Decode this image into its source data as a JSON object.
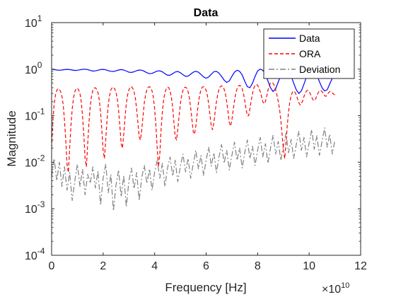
{
  "chart_data": {
    "type": "line",
    "title": "Data",
    "xlabel": "Frequency [Hz]",
    "ylabel": "Magnitude",
    "x_exponent_label": "×10",
    "x_exponent_power": "10",
    "x_scale_factor": 10000000000,
    "xlim": [
      0,
      12
    ],
    "ylim": [
      0.0001,
      10
    ],
    "yscale": "log",
    "grid": false,
    "legend_position": "top-right",
    "x_ticks": [
      0,
      2,
      4,
      6,
      8,
      10,
      12
    ],
    "x_tick_labels": [
      "0",
      "2",
      "4",
      "6",
      "8",
      "10",
      "12"
    ],
    "y_ticks": [
      0.0001,
      0.001,
      0.01,
      0.1,
      1,
      10
    ],
    "y_tick_bases": [
      "10",
      "10",
      "10",
      "10",
      "10",
      "10"
    ],
    "y_tick_powers": [
      "-4",
      "-3",
      "-2",
      "-1",
      "0",
      "1"
    ],
    "series": [
      {
        "name": "Data",
        "color": "#0000ff",
        "style": "solid",
        "x": [
          0,
          0.1,
          0.2,
          0.3,
          0.4,
          0.5,
          0.6,
          0.7,
          0.8,
          0.9,
          1.0,
          1.1,
          1.2,
          1.3,
          1.4,
          1.5,
          1.6,
          1.7,
          1.8,
          1.9,
          2.0,
          2.1,
          2.2,
          2.3,
          2.4,
          2.5,
          2.6,
          2.7,
          2.8,
          2.9,
          3.0,
          3.1,
          3.2,
          3.3,
          3.4,
          3.5,
          3.6,
          3.7,
          3.8,
          3.9,
          4.0,
          4.1,
          4.2,
          4.3,
          4.4,
          4.5,
          4.6,
          4.7,
          4.8,
          4.9,
          5.0,
          5.1,
          5.2,
          5.3,
          5.4,
          5.5,
          5.6,
          5.7,
          5.8,
          5.9,
          6.0,
          6.1,
          6.2,
          6.3,
          6.4,
          6.5,
          6.6,
          6.7,
          6.8,
          6.9,
          7.0,
          7.1,
          7.2,
          7.3,
          7.4,
          7.5,
          7.6,
          7.7,
          7.8,
          7.9,
          8.0,
          8.1,
          8.2,
          8.3,
          8.4,
          8.5,
          8.6,
          8.7,
          8.8,
          8.9,
          9.0,
          9.1,
          9.2,
          9.3,
          9.4,
          9.5,
          9.6,
          9.7,
          9.8,
          9.9,
          10.0,
          10.1,
          10.2,
          10.3,
          10.4,
          10.5,
          10.6,
          10.7,
          10.8,
          10.9,
          11.0
        ],
        "y": [
          1.0,
          0.98,
          0.96,
          0.95,
          0.96,
          0.98,
          0.99,
          0.98,
          0.96,
          0.94,
          0.95,
          0.97,
          0.99,
          1.0,
          0.98,
          0.94,
          0.91,
          0.92,
          0.95,
          0.98,
          0.99,
          0.97,
          0.93,
          0.9,
          0.89,
          0.92,
          0.96,
          0.98,
          0.96,
          0.91,
          0.86,
          0.85,
          0.88,
          0.93,
          0.96,
          0.95,
          0.9,
          0.84,
          0.8,
          0.81,
          0.86,
          0.91,
          0.92,
          0.88,
          0.8,
          0.74,
          0.74,
          0.8,
          0.87,
          0.89,
          0.84,
          0.76,
          0.7,
          0.71,
          0.78,
          0.86,
          0.9,
          0.86,
          0.77,
          0.68,
          0.64,
          0.68,
          0.78,
          0.88,
          0.9,
          0.82,
          0.7,
          0.58,
          0.52,
          0.56,
          0.7,
          0.86,
          0.95,
          0.9,
          0.75,
          0.55,
          0.42,
          0.4,
          0.5,
          0.7,
          0.92,
          1.0,
          0.95,
          0.78,
          0.56,
          0.4,
          0.33,
          0.38,
          0.53,
          0.75,
          0.97,
          1.0,
          0.92,
          0.72,
          0.5,
          0.36,
          0.3,
          0.34,
          0.48,
          0.68,
          0.9,
          0.99,
          0.92,
          0.75,
          0.54,
          0.4,
          0.34,
          0.36,
          0.48,
          0.64,
          0.76
        ]
      },
      {
        "name": "ORA",
        "color": "#ff0000",
        "style": "dashed",
        "x": [
          0,
          0.05,
          0.1,
          0.15,
          0.2,
          0.25,
          0.3,
          0.35,
          0.4,
          0.45,
          0.5,
          0.55,
          0.6,
          0.65,
          0.7,
          0.75,
          0.8,
          0.85,
          0.9,
          0.95,
          1.0,
          1.05,
          1.1,
          1.15,
          1.2,
          1.25,
          1.3,
          1.35,
          1.4,
          1.45,
          1.5,
          1.55,
          1.6,
          1.65,
          1.7,
          1.75,
          1.8,
          1.85,
          1.9,
          1.95,
          2.0,
          2.05,
          2.1,
          2.15,
          2.2,
          2.25,
          2.3,
          2.35,
          2.4,
          2.45,
          2.5,
          2.55,
          2.6,
          2.65,
          2.7,
          2.75,
          2.8,
          2.85,
          2.9,
          2.95,
          3.0,
          3.05,
          3.1,
          3.15,
          3.2,
          3.25,
          3.3,
          3.35,
          3.4,
          3.45,
          3.5,
          3.55,
          3.6,
          3.65,
          3.7,
          3.75,
          3.8,
          3.85,
          3.9,
          3.95,
          4.0,
          4.05,
          4.1,
          4.15,
          4.2,
          4.25,
          4.3,
          4.35,
          4.4,
          4.45,
          4.5,
          4.55,
          4.6,
          4.65,
          4.7,
          4.75,
          4.8,
          4.85,
          4.9,
          4.95,
          5.0,
          5.05,
          5.1,
          5.15,
          5.2,
          5.25,
          5.3,
          5.35,
          5.4,
          5.45,
          5.5,
          5.55,
          5.6,
          5.65,
          5.7,
          5.75,
          5.8,
          5.85,
          5.9,
          5.95,
          6.0,
          6.05,
          6.1,
          6.15,
          6.2,
          6.25,
          6.3,
          6.35,
          6.4,
          6.45,
          6.5,
          6.55,
          6.6,
          6.65,
          6.7,
          6.75,
          6.8,
          6.85,
          6.9,
          6.95,
          7.0,
          7.05,
          7.1,
          7.15,
          7.2,
          7.25,
          7.3,
          7.35,
          7.4,
          7.45,
          7.5,
          7.55,
          7.6,
          7.65,
          7.7,
          7.75,
          7.8,
          7.85,
          7.9,
          7.95,
          8.0,
          8.05,
          8.1,
          8.15,
          8.2,
          8.25,
          8.3,
          8.35,
          8.4,
          8.45,
          8.5,
          8.55,
          8.6,
          8.65,
          8.7,
          8.75,
          8.8,
          8.85,
          8.9,
          8.95,
          9.0,
          9.05,
          9.1,
          9.15,
          9.2,
          9.25,
          9.3,
          9.35,
          9.4,
          9.45,
          9.5,
          9.55,
          9.6,
          9.65,
          9.7,
          9.75,
          9.8,
          9.85,
          9.9,
          9.95,
          10.0,
          10.05,
          10.1,
          10.15,
          10.2,
          10.25,
          10.3,
          10.35,
          10.4,
          10.45,
          10.5,
          10.55,
          10.6,
          10.65,
          10.7,
          10.75,
          10.8,
          10.85,
          10.9,
          10.95,
          11.0
        ],
        "y": [
          0.02,
          0.08,
          0.18,
          0.28,
          0.35,
          0.38,
          0.37,
          0.33,
          0.26,
          0.17,
          0.08,
          0.03,
          0.009,
          0.006,
          0.02,
          0.06,
          0.14,
          0.24,
          0.33,
          0.38,
          0.39,
          0.36,
          0.3,
          0.2,
          0.1,
          0.04,
          0.012,
          0.008,
          0.025,
          0.07,
          0.16,
          0.26,
          0.35,
          0.39,
          0.4,
          0.37,
          0.31,
          0.22,
          0.12,
          0.05,
          0.018,
          0.012,
          0.03,
          0.08,
          0.17,
          0.27,
          0.36,
          0.4,
          0.41,
          0.38,
          0.32,
          0.23,
          0.13,
          0.06,
          0.025,
          0.02,
          0.04,
          0.09,
          0.18,
          0.28,
          0.36,
          0.41,
          0.42,
          0.39,
          0.33,
          0.24,
          0.14,
          0.07,
          0.035,
          0.03,
          0.05,
          0.1,
          0.19,
          0.28,
          0.36,
          0.41,
          0.42,
          0.4,
          0.34,
          0.25,
          0.14,
          0.06,
          0.02,
          0.008,
          0.015,
          0.05,
          0.12,
          0.22,
          0.31,
          0.38,
          0.41,
          0.4,
          0.34,
          0.25,
          0.15,
          0.07,
          0.035,
          0.03,
          0.05,
          0.1,
          0.18,
          0.27,
          0.35,
          0.4,
          0.41,
          0.39,
          0.33,
          0.24,
          0.15,
          0.08,
          0.045,
          0.04,
          0.06,
          0.11,
          0.19,
          0.28,
          0.36,
          0.41,
          0.42,
          0.4,
          0.35,
          0.27,
          0.18,
          0.1,
          0.06,
          0.05,
          0.07,
          0.12,
          0.2,
          0.29,
          0.37,
          0.42,
          0.44,
          0.42,
          0.37,
          0.29,
          0.2,
          0.12,
          0.07,
          0.06,
          0.08,
          0.13,
          0.21,
          0.3,
          0.38,
          0.43,
          0.45,
          0.43,
          0.38,
          0.3,
          0.21,
          0.14,
          0.1,
          0.1,
          0.14,
          0.21,
          0.3,
          0.39,
          0.45,
          0.47,
          0.45,
          0.4,
          0.33,
          0.26,
          0.2,
          0.18,
          0.2,
          0.26,
          0.35,
          0.44,
          0.5,
          0.52,
          0.5,
          0.44,
          0.36,
          0.28,
          0.2,
          0.14,
          0.08,
          0.04,
          0.018,
          0.012,
          0.025,
          0.06,
          0.12,
          0.2,
          0.27,
          0.32,
          0.34,
          0.32,
          0.28,
          0.23,
          0.19,
          0.17,
          0.18,
          0.21,
          0.26,
          0.31,
          0.34,
          0.35,
          0.33,
          0.29,
          0.25,
          0.22,
          0.21,
          0.23,
          0.27,
          0.31,
          0.34,
          0.35,
          0.33,
          0.3,
          0.27,
          0.26,
          0.28,
          0.31,
          0.33,
          0.33,
          0.31,
          0.29,
          0.28
        ]
      },
      {
        "name": "Deviation",
        "color": "#808080",
        "style": "dashdot",
        "x": [
          0,
          0.1,
          0.2,
          0.3,
          0.4,
          0.5,
          0.6,
          0.7,
          0.8,
          0.9,
          1.0,
          1.1,
          1.2,
          1.3,
          1.4,
          1.5,
          1.6,
          1.7,
          1.8,
          1.9,
          2.0,
          2.1,
          2.2,
          2.3,
          2.4,
          2.5,
          2.6,
          2.7,
          2.8,
          2.9,
          3.0,
          3.1,
          3.2,
          3.3,
          3.4,
          3.5,
          3.6,
          3.7,
          3.8,
          3.9,
          4.0,
          4.1,
          4.2,
          4.3,
          4.4,
          4.5,
          4.6,
          4.7,
          4.8,
          4.9,
          5.0,
          5.1,
          5.2,
          5.3,
          5.4,
          5.5,
          5.6,
          5.7,
          5.8,
          5.9,
          6.0,
          6.1,
          6.2,
          6.3,
          6.4,
          6.5,
          6.6,
          6.7,
          6.8,
          6.9,
          7.0,
          7.1,
          7.2,
          7.3,
          7.4,
          7.5,
          7.6,
          7.7,
          7.8,
          7.9,
          8.0,
          8.1,
          8.2,
          8.3,
          8.4,
          8.5,
          8.6,
          8.7,
          8.8,
          8.9,
          9.0,
          9.1,
          9.2,
          9.3,
          9.4,
          9.5,
          9.6,
          9.7,
          9.8,
          9.9,
          10.0,
          10.1,
          10.2,
          10.3,
          10.4,
          10.5,
          10.6,
          10.7,
          10.8,
          10.9,
          11.0
        ],
        "y": [
          0.005,
          0.012,
          0.004,
          0.01,
          0.003,
          0.008,
          0.0025,
          0.006,
          0.0015,
          0.004,
          0.009,
          0.003,
          0.007,
          0.002,
          0.0055,
          0.0035,
          0.008,
          0.0028,
          0.0065,
          0.0012,
          0.0045,
          0.009,
          0.0022,
          0.0055,
          0.0009,
          0.0032,
          0.0068,
          0.0018,
          0.0052,
          0.0011,
          0.004,
          0.0075,
          0.0027,
          0.006,
          0.0015,
          0.0048,
          0.0085,
          0.0035,
          0.0072,
          0.0025,
          0.0062,
          0.011,
          0.0045,
          0.0095,
          0.003,
          0.0075,
          0.013,
          0.005,
          0.011,
          0.0038,
          0.0082,
          0.015,
          0.0062,
          0.012,
          0.0045,
          0.0092,
          0.018,
          0.0072,
          0.014,
          0.0052,
          0.011,
          0.021,
          0.0082,
          0.016,
          0.006,
          0.013,
          0.024,
          0.0095,
          0.018,
          0.0068,
          0.014,
          0.027,
          0.011,
          0.02,
          0.0075,
          0.016,
          0.03,
          0.012,
          0.022,
          0.0085,
          0.018,
          0.034,
          0.013,
          0.025,
          0.0095,
          0.02,
          0.038,
          0.015,
          0.028,
          0.011,
          0.022,
          0.042,
          0.016,
          0.031,
          0.012,
          0.024,
          0.046,
          0.018,
          0.034,
          0.013,
          0.026,
          0.05,
          0.019,
          0.037,
          0.014,
          0.028,
          0.055,
          0.021,
          0.04,
          0.015,
          0.03
        ]
      }
    ]
  }
}
